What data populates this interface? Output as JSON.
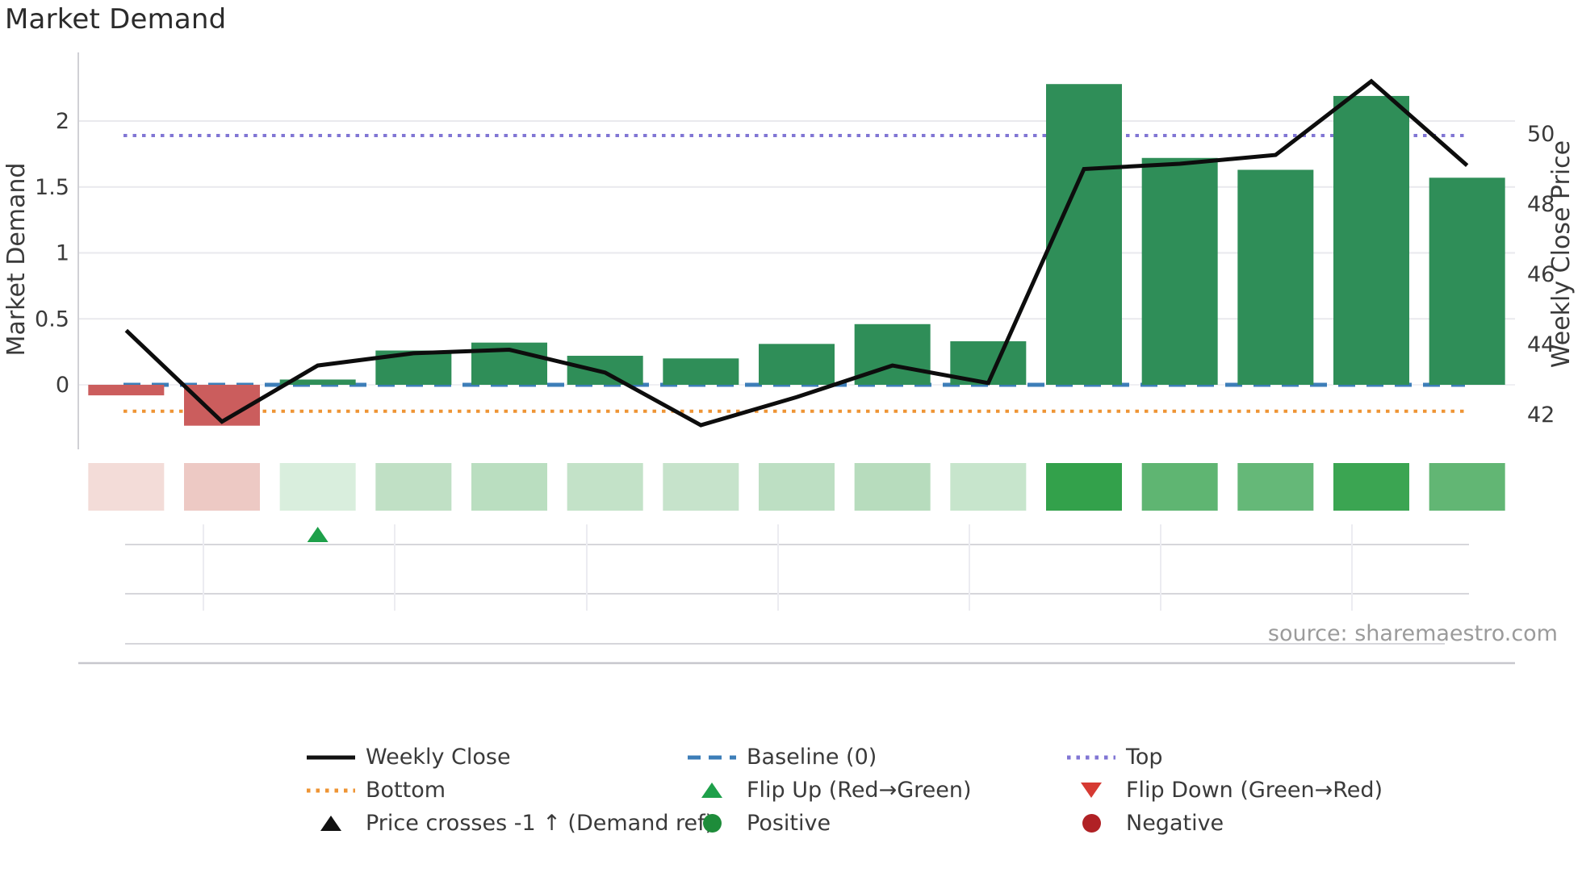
{
  "title": "Market Demand",
  "source": "source: sharemaestro.com",
  "chart_data": {
    "type": "combo",
    "n_periods": 15,
    "x_tick_labels_visible": false,
    "left_axis": {
      "label": "Market Demand",
      "ticks": [
        0,
        0.5,
        1,
        1.5,
        2
      ],
      "ylim": [
        -0.48,
        2.52
      ],
      "grid": true
    },
    "right_axis": {
      "label": "Weekly Close Price",
      "ticks": [
        42,
        44,
        46,
        48,
        50
      ],
      "ylim": [
        41.1,
        52.3
      ]
    },
    "series": [
      {
        "name": "Market Demand",
        "type": "bar",
        "yaxis": "left",
        "values": [
          -0.08,
          -0.31,
          0.04,
          0.26,
          0.32,
          0.22,
          0.2,
          0.31,
          0.46,
          0.33,
          2.28,
          1.72,
          1.63,
          2.19,
          1.57
        ]
      },
      {
        "name": "Weekly Close",
        "type": "line",
        "yaxis": "right",
        "values": [
          44.4,
          41.8,
          43.4,
          43.75,
          43.85,
          43.2,
          41.7,
          42.5,
          43.4,
          42.9,
          49.0,
          49.15,
          49.4,
          51.5,
          49.1
        ]
      }
    ],
    "reference_lines": [
      {
        "name": "Baseline (0)",
        "axis": "left",
        "value": 0,
        "style": "dashed",
        "color": "#3d7eb8"
      },
      {
        "name": "Top",
        "axis": "left",
        "value": 1.89,
        "style": "dotted",
        "color": "#8176d4"
      },
      {
        "name": "Bottom",
        "axis": "left",
        "value": -0.2,
        "style": "dotted",
        "color": "#ee9434"
      }
    ],
    "heat_strip_colors": [
      "#f3dcd8",
      "#edc9c4",
      "#d9eedd",
      "#c0e0c5",
      "#badec0",
      "#c3e2c8",
      "#c6e3cb",
      "#bddfc3",
      "#b7dcbd",
      "#c7e5cc",
      "#33a14b",
      "#5fb572",
      "#65b878",
      "#3ba552",
      "#62b674"
    ],
    "event_markers": [
      {
        "type": "flip-up",
        "index": 2,
        "color": "#1ea04a"
      }
    ]
  },
  "colors": {
    "bar_positive": "#2f8e58",
    "bar_negative": "#cb5d5d",
    "line": "#0d0d0d",
    "grid": "#e9e9ed",
    "mini_grid": "#d6d6db",
    "mini_grid_light": "#ececf1",
    "spine": "#c7c7cd",
    "axis_text": "#3a3a3a"
  },
  "legend": {
    "columns": [
      {
        "items": [
          {
            "swatch": "line-solid",
            "color": "#111111",
            "label": "Weekly Close"
          },
          {
            "swatch": "line-dotted",
            "color": "#ee9434",
            "label": "Bottom"
          },
          {
            "swatch": "triangle-up",
            "color": "#111111",
            "label": "Price crosses -1 ↑ (Demand ref)"
          }
        ]
      },
      {
        "items": [
          {
            "swatch": "line-dashed",
            "color": "#3d7eb8",
            "label": "Baseline (0)"
          },
          {
            "swatch": "triangle-up",
            "color": "#1ea04a",
            "label": "Flip Up (Red→Green)"
          },
          {
            "swatch": "circle",
            "color": "#1e8c3a",
            "label": "Positive"
          }
        ]
      },
      {
        "items": [
          {
            "swatch": "line-dotted",
            "color": "#8176d4",
            "label": "Top"
          },
          {
            "swatch": "triangle-down",
            "color": "#d63a33",
            "label": "Flip Down (Green→Red)"
          },
          {
            "swatch": "circle",
            "color": "#b02125",
            "label": "Negative"
          }
        ]
      }
    ]
  }
}
